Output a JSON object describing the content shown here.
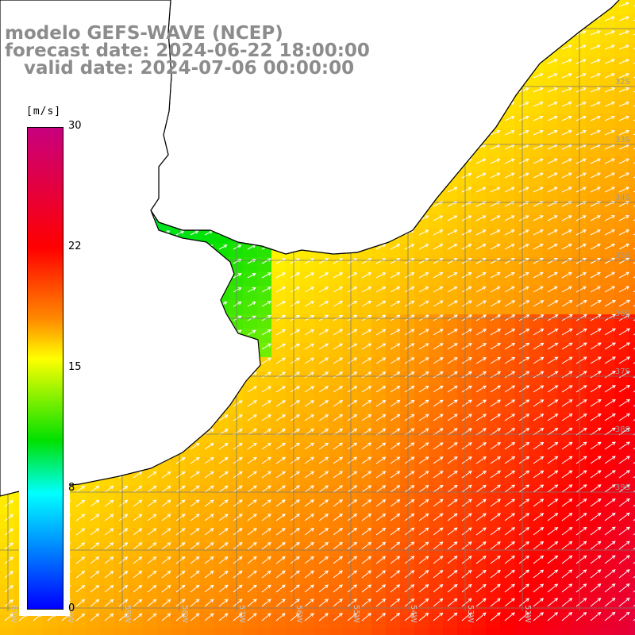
{
  "title": {
    "line1": "modelo GEFS-WAVE (NCEP)",
    "line2": "forecast date: 2024-06-22 18:00:00",
    "line3": "   valid date: 2024-07-06 00:00:00"
  },
  "legend": {
    "unit": "[m/s]",
    "ticks": [
      "30",
      "22",
      "15",
      "8",
      "0"
    ],
    "min": 0,
    "max": 30,
    "colors": [
      "#0000ff",
      "#0080ff",
      "#00ffff",
      "#00e000",
      "#ffff00",
      "#ff8c00",
      "#ff0000",
      "#c8007e"
    ]
  },
  "lat_labels": [
    "32S",
    "33S",
    "34S",
    "35S",
    "36S",
    "37S",
    "38S",
    "39S"
  ],
  "lon_labels": [
    "61W",
    "60W",
    "59W",
    "58W",
    "57W",
    "56W",
    "55W",
    "54W",
    "53W",
    "52W"
  ],
  "field": {
    "variable": "wind speed",
    "direction": "southwest winds (arrows pointing north-east)",
    "pattern": "low speeds (~8-10 m/s) in the Rio de la Plata estuary, ~13-15 m/s over the northern shelf, increasing to ~20-24 m/s in the south-east corner"
  }
}
